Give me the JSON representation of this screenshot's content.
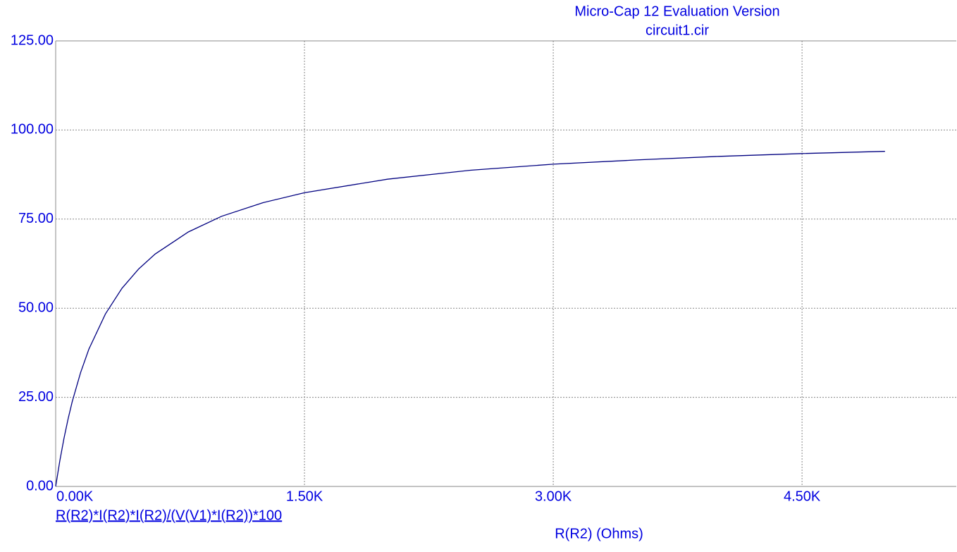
{
  "chart_data": {
    "type": "line",
    "title": "Micro-Cap 12 Evaluation Version",
    "subtitle": "circuit1.cir",
    "x_label": "R(R2) (Ohms)",
    "x": [
      0,
      25,
      50,
      75,
      100,
      150,
      200,
      300,
      400,
      500,
      600,
      800,
      1000,
      1250,
      1500,
      2000,
      2500,
      3000,
      3500,
      4000,
      4500,
      5000
    ],
    "series": [
      {
        "name": "R(R2)*I(R2)*I(R2)/(V(V1)*I(R2))*100",
        "color": "#000080",
        "values": [
          0,
          7.2,
          13.5,
          19.0,
          23.8,
          31.9,
          38.5,
          48.4,
          55.6,
          61.0,
          65.2,
          71.4,
          75.8,
          79.6,
          82.4,
          86.2,
          88.7,
          90.4,
          91.6,
          92.6,
          93.4,
          94.0
        ]
      }
    ],
    "xlim": [
      0,
      5430
    ],
    "ylim": [
      0,
      125
    ],
    "xticks": [
      {
        "value": 0,
        "label": "0.00K"
      },
      {
        "value": 1500,
        "label": "1.50K"
      },
      {
        "value": 3000,
        "label": "3.00K"
      },
      {
        "value": 4500,
        "label": "4.50K"
      }
    ],
    "yticks": [
      {
        "value": 0,
        "label": "0.00"
      },
      {
        "value": 25,
        "label": "25.00"
      },
      {
        "value": 50,
        "label": "50.00"
      },
      {
        "value": 75,
        "label": "75.00"
      },
      {
        "value": 100,
        "label": "100.00"
      },
      {
        "value": 125,
        "label": "125.00"
      }
    ],
    "grid": true
  }
}
